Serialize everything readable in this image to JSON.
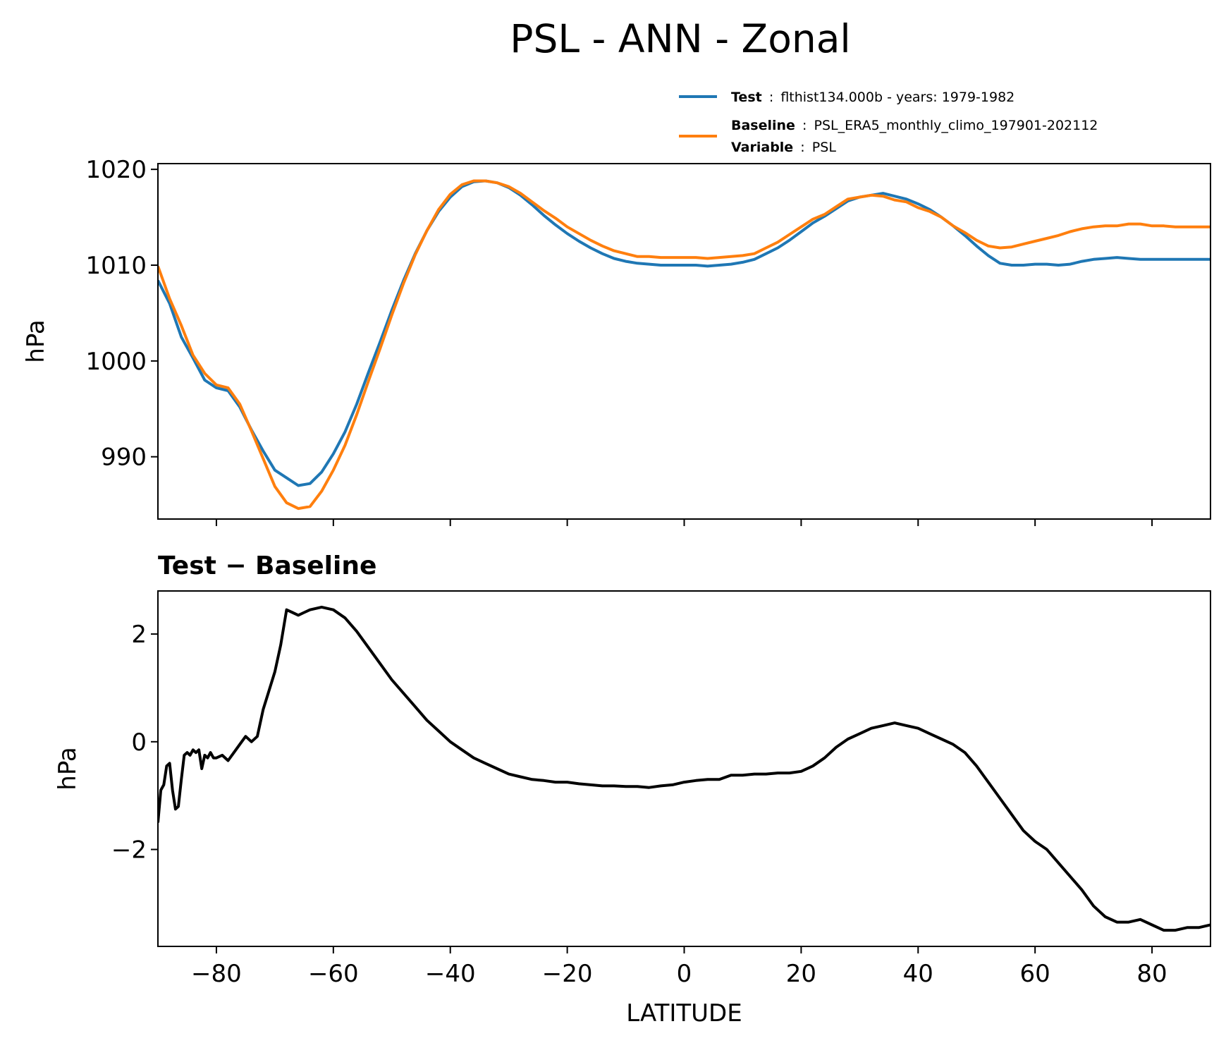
{
  "title": "PSL - ANN - Zonal",
  "colors": {
    "test": "#1f77b4",
    "baseline": "#ff7f0e",
    "diff": "#000000"
  },
  "legend": {
    "test": {
      "key": "Test",
      "sep": ":",
      "value": "flthist134.000b - years: 1979-1982"
    },
    "baseline": {
      "key": "Baseline",
      "sep": ":",
      "value": "PSL_ERA5_monthly_climo_197901-202112"
    },
    "variable": {
      "key": "Variable",
      "sep": ":",
      "value": "PSL"
    }
  },
  "chart_data": [
    {
      "type": "line",
      "title": "",
      "xlabel": "",
      "ylabel": "hPa",
      "xlim": [
        -90,
        90
      ],
      "ylim": [
        983.5,
        1020.6
      ],
      "xticks": [
        -80,
        -60,
        -40,
        -20,
        0,
        20,
        40,
        60,
        80
      ],
      "yticks": [
        990,
        1000,
        1010,
        1020
      ],
      "ytick_labels": [
        "990",
        "1000",
        "1010",
        "1020"
      ],
      "series": [
        {
          "name": "Test",
          "x": [
            -90,
            -88,
            -86,
            -84,
            -82,
            -80,
            -78,
            -76,
            -74,
            -72,
            -70,
            -68,
            -66,
            -64,
            -62,
            -60,
            -58,
            -56,
            -54,
            -52,
            -50,
            -48,
            -46,
            -44,
            -42,
            -40,
            -38,
            -36,
            -34,
            -32,
            -30,
            -28,
            -26,
            -24,
            -22,
            -20,
            -18,
            -16,
            -14,
            -12,
            -10,
            -8,
            -6,
            -4,
            -2,
            0,
            2,
            4,
            6,
            8,
            10,
            12,
            14,
            16,
            18,
            20,
            22,
            24,
            26,
            28,
            30,
            32,
            34,
            36,
            38,
            40,
            42,
            44,
            46,
            48,
            50,
            52,
            54,
            56,
            58,
            60,
            62,
            64,
            66,
            68,
            70,
            72,
            74,
            76,
            78,
            80,
            82,
            84,
            86,
            88,
            90
          ],
          "values": [
            1008.4,
            1006.0,
            1002.5,
            1000.3,
            998.0,
            997.2,
            996.9,
            995.2,
            992.8,
            990.6,
            988.6,
            987.8,
            987.0,
            987.2,
            988.4,
            990.3,
            992.6,
            995.5,
            998.8,
            1002.0,
            1005.3,
            1008.4,
            1011.2,
            1013.6,
            1015.6,
            1017.1,
            1018.2,
            1018.7,
            1018.8,
            1018.6,
            1018.1,
            1017.3,
            1016.3,
            1015.2,
            1014.2,
            1013.3,
            1012.5,
            1011.8,
            1011.2,
            1010.7,
            1010.4,
            1010.2,
            1010.1,
            1010.0,
            1010.0,
            1010.0,
            1010.0,
            1009.9,
            1010.0,
            1010.1,
            1010.3,
            1010.6,
            1011.2,
            1011.8,
            1012.6,
            1013.5,
            1014.4,
            1015.1,
            1015.9,
            1016.7,
            1017.1,
            1017.3,
            1017.5,
            1017.2,
            1016.9,
            1016.4,
            1015.8,
            1015.0,
            1014.1,
            1013.1,
            1012.0,
            1011.0,
            1010.2,
            1010.0,
            1010.0,
            1010.1,
            1010.1,
            1010.0,
            1010.1,
            1010.4,
            1010.6,
            1010.7,
            1010.8,
            1010.7,
            1010.6,
            1010.6,
            1010.6,
            1010.6,
            1010.6,
            1010.6,
            1010.6
          ]
        },
        {
          "name": "Baseline",
          "x": [
            -90,
            -88,
            -86,
            -84,
            -82,
            -80,
            -78,
            -76,
            -74,
            -72,
            -70,
            -68,
            -66,
            -64,
            -62,
            -60,
            -58,
            -56,
            -54,
            -52,
            -50,
            -48,
            -46,
            -44,
            -42,
            -40,
            -38,
            -36,
            -34,
            -32,
            -30,
            -28,
            -26,
            -24,
            -22,
            -20,
            -18,
            -16,
            -14,
            -12,
            -10,
            -8,
            -6,
            -4,
            -2,
            0,
            2,
            4,
            6,
            8,
            10,
            12,
            14,
            16,
            18,
            20,
            22,
            24,
            26,
            28,
            30,
            32,
            34,
            36,
            38,
            40,
            42,
            44,
            46,
            48,
            50,
            52,
            54,
            56,
            58,
            60,
            62,
            64,
            66,
            68,
            70,
            72,
            74,
            76,
            78,
            80,
            82,
            84,
            86,
            88,
            90
          ],
          "values": [
            1009.9,
            1006.5,
            1003.7,
            1000.6,
            998.7,
            997.5,
            997.2,
            995.5,
            992.7,
            989.8,
            986.9,
            985.2,
            984.6,
            984.8,
            986.4,
            988.6,
            991.2,
            994.4,
            997.9,
            1001.3,
            1004.8,
            1008.1,
            1011.1,
            1013.6,
            1015.8,
            1017.4,
            1018.4,
            1018.8,
            1018.8,
            1018.6,
            1018.2,
            1017.5,
            1016.6,
            1015.7,
            1014.9,
            1014.0,
            1013.3,
            1012.6,
            1012.0,
            1011.5,
            1011.2,
            1010.9,
            1010.9,
            1010.8,
            1010.8,
            1010.8,
            1010.8,
            1010.7,
            1010.8,
            1010.9,
            1011.0,
            1011.2,
            1011.8,
            1012.4,
            1013.2,
            1014.0,
            1014.8,
            1015.3,
            1016.1,
            1016.9,
            1017.1,
            1017.3,
            1017.2,
            1016.8,
            1016.6,
            1016.0,
            1015.6,
            1015.0,
            1014.1,
            1013.4,
            1012.6,
            1012.0,
            1011.8,
            1011.9,
            1012.2,
            1012.5,
            1012.8,
            1013.1,
            1013.5,
            1013.8,
            1014.0,
            1014.1,
            1014.1,
            1014.3,
            1014.3,
            1014.1,
            1014.1,
            1014.0,
            1014.0,
            1014.0,
            1014.0
          ]
        }
      ]
    },
    {
      "type": "line",
      "title": "Test − Baseline",
      "xlabel": "LATITUDE",
      "ylabel": "hPa",
      "xlim": [
        -90,
        90
      ],
      "ylim": [
        -3.8,
        2.8
      ],
      "xticks": [
        -80,
        -60,
        -40,
        -20,
        0,
        20,
        40,
        60,
        80
      ],
      "xtick_labels": [
        "−80",
        "−60",
        "−40",
        "−20",
        "0",
        "20",
        "40",
        "60",
        "80"
      ],
      "yticks": [
        -2,
        0,
        2
      ],
      "ytick_labels": [
        "−2",
        "0",
        "2"
      ],
      "series": [
        {
          "name": "Test − Baseline",
          "x": [
            -90,
            -89.5,
            -89,
            -88.5,
            -88,
            -87.5,
            -87,
            -86.5,
            -86,
            -85.5,
            -85,
            -84.5,
            -84,
            -83.5,
            -83,
            -82.5,
            -82,
            -81.5,
            -81,
            -80.5,
            -80,
            -79,
            -78,
            -77,
            -76,
            -75,
            -74,
            -73,
            -72,
            -71,
            -70,
            -69,
            -68,
            -67,
            -66,
            -65,
            -64,
            -62,
            -60,
            -58,
            -56,
            -54,
            -52,
            -50,
            -48,
            -46,
            -44,
            -42,
            -40,
            -38,
            -36,
            -34,
            -32,
            -30,
            -28,
            -26,
            -24,
            -22,
            -20,
            -18,
            -16,
            -14,
            -12,
            -10,
            -8,
            -6,
            -4,
            -2,
            0,
            2,
            4,
            6,
            8,
            10,
            12,
            14,
            16,
            18,
            20,
            22,
            24,
            26,
            28,
            30,
            32,
            34,
            36,
            38,
            40,
            42,
            44,
            46,
            48,
            50,
            52,
            54,
            56,
            58,
            60,
            62,
            64,
            66,
            68,
            70,
            72,
            74,
            76,
            78,
            80,
            82,
            84,
            86,
            88,
            90
          ],
          "values": [
            -1.5,
            -0.9,
            -0.8,
            -0.45,
            -0.4,
            -0.9,
            -1.25,
            -1.2,
            -0.7,
            -0.25,
            -0.2,
            -0.25,
            -0.15,
            -0.2,
            -0.15,
            -0.5,
            -0.25,
            -0.3,
            -0.2,
            -0.3,
            -0.3,
            -0.25,
            -0.35,
            -0.2,
            -0.05,
            0.1,
            0.0,
            0.1,
            0.6,
            0.95,
            1.3,
            1.8,
            2.45,
            2.4,
            2.35,
            2.4,
            2.45,
            2.5,
            2.45,
            2.3,
            2.05,
            1.75,
            1.45,
            1.15,
            0.9,
            0.65,
            0.4,
            0.2,
            0.0,
            -0.15,
            -0.3,
            -0.4,
            -0.5,
            -0.6,
            -0.65,
            -0.7,
            -0.72,
            -0.75,
            -0.75,
            -0.78,
            -0.8,
            -0.82,
            -0.82,
            -0.83,
            -0.83,
            -0.85,
            -0.82,
            -0.8,
            -0.75,
            -0.72,
            -0.7,
            -0.7,
            -0.62,
            -0.62,
            -0.6,
            -0.6,
            -0.58,
            -0.58,
            -0.55,
            -0.45,
            -0.3,
            -0.1,
            0.05,
            0.15,
            0.25,
            0.3,
            0.35,
            0.3,
            0.25,
            0.15,
            0.05,
            -0.05,
            -0.2,
            -0.45,
            -0.75,
            -1.05,
            -1.35,
            -1.65,
            -1.85,
            -2.0,
            -2.25,
            -2.5,
            -2.75,
            -3.05,
            -3.25,
            -3.35,
            -3.35,
            -3.3,
            -3.4,
            -3.5,
            -3.5,
            -3.45,
            -3.45,
            -3.4
          ]
        }
      ]
    }
  ]
}
